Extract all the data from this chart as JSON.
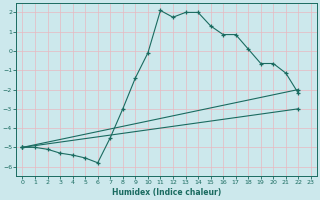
{
  "xlabel": "Humidex (Indice chaleur)",
  "bg_color": "#cce8ec",
  "line_color": "#1a6b60",
  "grid_color": "#b8d8dc",
  "xlim": [
    -0.5,
    23.5
  ],
  "ylim": [
    -6.5,
    2.5
  ],
  "xticks": [
    0,
    1,
    2,
    3,
    4,
    5,
    6,
    7,
    8,
    9,
    10,
    11,
    12,
    13,
    14,
    15,
    16,
    17,
    18,
    19,
    20,
    21,
    22,
    23
  ],
  "yticks": [
    -6,
    -5,
    -4,
    -3,
    -2,
    -1,
    0,
    1,
    2
  ],
  "curve1_x": [
    0,
    1,
    2,
    3,
    4,
    5,
    6,
    7,
    8,
    9,
    10,
    11,
    12,
    13,
    14,
    15,
    16,
    17,
    18,
    19,
    20,
    21,
    22
  ],
  "curve1_y": [
    -5.0,
    -5.0,
    -5.1,
    -5.3,
    -5.4,
    -5.55,
    -5.8,
    -4.5,
    -3.0,
    -1.4,
    -0.1,
    2.1,
    1.75,
    2.0,
    2.0,
    1.3,
    0.85,
    0.85,
    0.1,
    -0.65,
    -0.65,
    -1.15,
    -2.2
  ],
  "curve2_x": [
    0,
    22
  ],
  "curve2_y": [
    -5.0,
    -3.0
  ],
  "curve3_x": [
    0,
    22
  ],
  "curve3_y": [
    -5.0,
    -2.0
  ]
}
